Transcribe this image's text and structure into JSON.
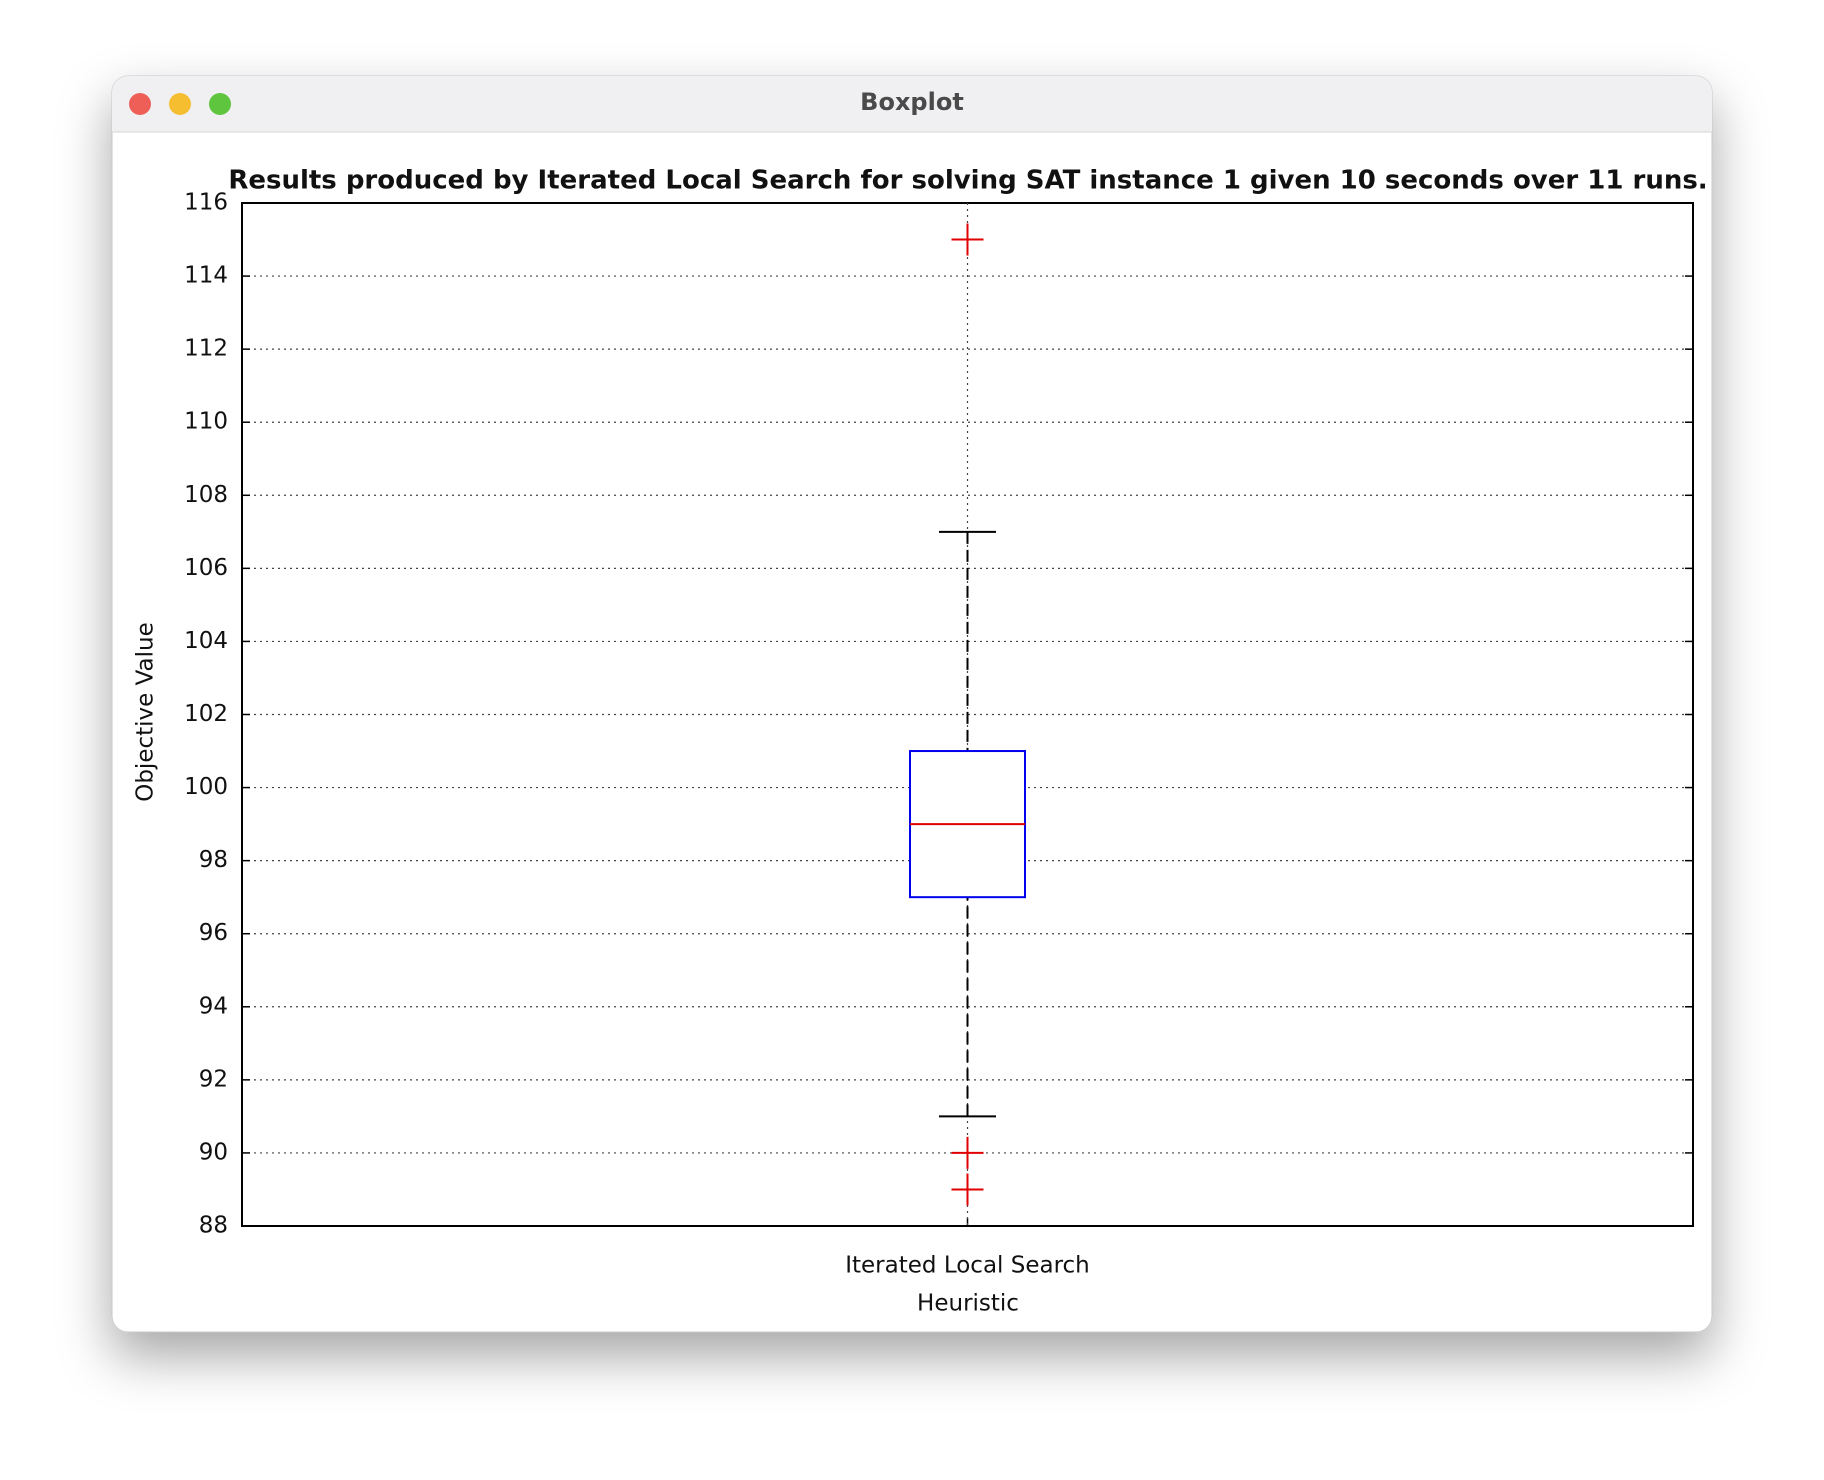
{
  "window": {
    "title": "Boxplot"
  },
  "chart_data": {
    "type": "box",
    "title": "Results produced by Iterated Local Search for solving SAT instance 1 given 10 seconds over 11 runs.",
    "xlabel": "Heuristic",
    "ylabel": "Objective Value",
    "categories": [
      "Iterated Local Search"
    ],
    "boxes": [
      {
        "low": 91,
        "q1": 97,
        "median": 99,
        "q3": 101,
        "high": 107,
        "outliers": [
          115,
          90,
          89
        ]
      }
    ],
    "ylim": [
      88,
      116
    ],
    "yticks": [
      88,
      90,
      92,
      94,
      96,
      98,
      100,
      102,
      104,
      106,
      108,
      110,
      112,
      114,
      116
    ],
    "grid": true,
    "box_color": "#0000ee",
    "median_color": "#e00000",
    "whisker_color": "#000000",
    "outlier_color": "#e00000"
  }
}
